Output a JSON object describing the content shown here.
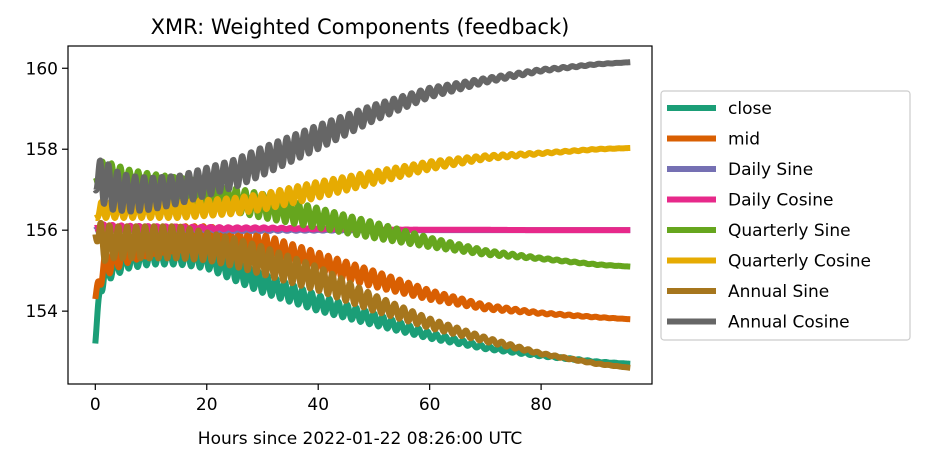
{
  "chart_data": {
    "type": "line",
    "title": "XMR: Weighted Components (feedback)",
    "xlabel": "Hours since 2022-01-22 08:26:00 UTC",
    "ylabel": "",
    "xlim": [
      -4.9,
      99.9
    ],
    "ylim": [
      152.2,
      160.55
    ],
    "x_ticks": [
      0,
      20,
      40,
      60,
      80
    ],
    "y_ticks": [
      154,
      156,
      158,
      160
    ],
    "legend_placement": "right-outside",
    "series": [
      {
        "name": "close",
        "color": "#1b9e77",
        "x": [
          0,
          1,
          3,
          6,
          10,
          15,
          20,
          25,
          30,
          40,
          50,
          60,
          70,
          80,
          90,
          96
        ],
        "y": [
          153.2,
          154.8,
          155.1,
          155.3,
          155.4,
          155.4,
          155.3,
          155.0,
          154.7,
          154.2,
          153.8,
          153.4,
          153.1,
          152.9,
          152.75,
          152.7
        ],
        "osc_amp": [
          0,
          0.35,
          0.25,
          0.25,
          0.25,
          0.25,
          0.25,
          0.25,
          0.25,
          0.2,
          0.15,
          0.08,
          0.04,
          0.02,
          0.01,
          0.0
        ]
      },
      {
        "name": "mid",
        "color": "#d95f02",
        "x": [
          0,
          1,
          3,
          6,
          10,
          15,
          20,
          25,
          30,
          40,
          50,
          60,
          70,
          80,
          90,
          96
        ],
        "y": [
          154.3,
          155.0,
          155.3,
          155.5,
          155.7,
          155.8,
          155.8,
          155.7,
          155.6,
          155.2,
          154.8,
          154.4,
          154.1,
          153.95,
          153.85,
          153.8
        ],
        "osc_amp": [
          0,
          0.35,
          0.3,
          0.3,
          0.3,
          0.3,
          0.3,
          0.3,
          0.3,
          0.25,
          0.2,
          0.12,
          0.06,
          0.02,
          0.01,
          0.0
        ]
      },
      {
        "name": "Daily Sine",
        "color": "#7570b3",
        "x": [
          0,
          1,
          3,
          6,
          10,
          15,
          20,
          25,
          30,
          40,
          50,
          60,
          70,
          80,
          90,
          96
        ],
        "y": [
          156.0,
          156.0,
          156.0,
          156.0,
          156.0,
          156.0,
          156.0,
          156.0,
          156.0,
          156.0,
          156.0,
          156.0,
          156.0,
          156.0,
          156.0,
          156.0
        ],
        "osc_amp": [
          0,
          0.12,
          0.08,
          0.06,
          0.05,
          0.04,
          0.03,
          0.02,
          0.02,
          0.01,
          0.01,
          0,
          0,
          0,
          0,
          0
        ]
      },
      {
        "name": "Daily Cosine",
        "color": "#e7298a",
        "x": [
          0,
          1,
          3,
          6,
          10,
          15,
          20,
          25,
          30,
          40,
          50,
          60,
          70,
          80,
          90,
          96
        ],
        "y": [
          156.05,
          156.05,
          156.05,
          156.05,
          156.05,
          156.05,
          156.05,
          156.05,
          156.05,
          156.03,
          156.02,
          156.01,
          156.01,
          156.0,
          156.0,
          156.0
        ],
        "osc_amp": [
          0,
          0.1,
          0.08,
          0.06,
          0.05,
          0.04,
          0.03,
          0.02,
          0.02,
          0.01,
          0.01,
          0,
          0,
          0,
          0,
          0
        ]
      },
      {
        "name": "Quarterly Sine",
        "color": "#66a61e",
        "x": [
          0,
          1,
          3,
          6,
          10,
          15,
          20,
          25,
          30,
          40,
          50,
          60,
          70,
          80,
          90,
          96
        ],
        "y": [
          157.3,
          157.3,
          157.3,
          157.2,
          157.1,
          157.0,
          156.9,
          156.75,
          156.6,
          156.3,
          156.0,
          155.7,
          155.45,
          155.3,
          155.15,
          155.1
        ],
        "osc_amp": [
          0,
          0.4,
          0.35,
          0.3,
          0.3,
          0.3,
          0.3,
          0.3,
          0.3,
          0.25,
          0.2,
          0.12,
          0.06,
          0.02,
          0.01,
          0.0
        ]
      },
      {
        "name": "Quarterly Cosine",
        "color": "#e6ab02",
        "x": [
          0,
          1,
          3,
          6,
          10,
          15,
          20,
          25,
          30,
          40,
          50,
          60,
          70,
          80,
          90,
          96
        ],
        "y": [
          156.3,
          156.5,
          156.5,
          156.5,
          156.5,
          156.5,
          156.55,
          156.6,
          156.7,
          157.0,
          157.3,
          157.6,
          157.8,
          157.9,
          158.0,
          158.03
        ],
        "osc_amp": [
          0,
          0.2,
          0.2,
          0.2,
          0.2,
          0.2,
          0.2,
          0.2,
          0.2,
          0.2,
          0.15,
          0.1,
          0.05,
          0.02,
          0.01,
          0.0
        ]
      },
      {
        "name": "Annual Sine",
        "color": "#a6761d",
        "x": [
          0,
          1,
          3,
          6,
          10,
          15,
          20,
          25,
          30,
          40,
          50,
          60,
          70,
          80,
          90,
          96
        ],
        "y": [
          155.9,
          155.7,
          155.7,
          155.7,
          155.7,
          155.7,
          155.6,
          155.45,
          155.25,
          154.8,
          154.2,
          153.7,
          153.3,
          152.95,
          152.7,
          152.6
        ],
        "osc_amp": [
          0,
          0.5,
          0.4,
          0.4,
          0.4,
          0.4,
          0.35,
          0.35,
          0.35,
          0.3,
          0.2,
          0.12,
          0.06,
          0.02,
          0.01,
          0.0
        ]
      },
      {
        "name": "Annual Cosine",
        "color": "#666666",
        "x": [
          0,
          1,
          3,
          6,
          10,
          15,
          20,
          25,
          30,
          40,
          50,
          60,
          70,
          80,
          90,
          96
        ],
        "y": [
          157.0,
          157.3,
          157.0,
          156.9,
          156.9,
          157.0,
          157.2,
          157.4,
          157.7,
          158.3,
          158.9,
          159.4,
          159.7,
          159.95,
          160.1,
          160.15
        ],
        "osc_amp": [
          0,
          0.6,
          0.5,
          0.45,
          0.4,
          0.35,
          0.35,
          0.35,
          0.35,
          0.3,
          0.2,
          0.12,
          0.06,
          0.03,
          0.01,
          0.0
        ]
      }
    ]
  }
}
